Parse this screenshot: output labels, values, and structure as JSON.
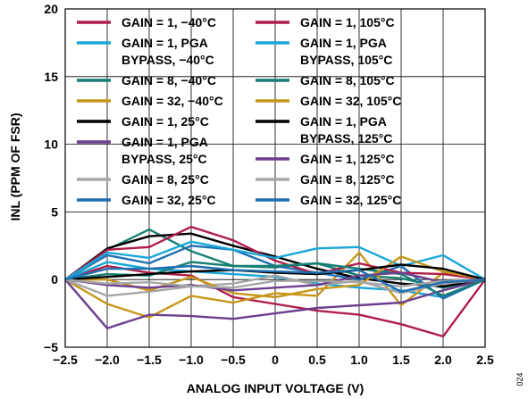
{
  "figure_id": "024",
  "chart_data": {
    "type": "line",
    "title": "",
    "xlabel": "ANALOG INPUT VOLTAGE (V)",
    "ylabel": "INL (PPM OF FSR)",
    "xlim": [
      -2.5,
      2.5
    ],
    "ylim": [
      -5,
      20
    ],
    "xticks": [
      "−2.5",
      "−2.0",
      "−1.5",
      "−1.0",
      "−0.5",
      "0",
      "0.5",
      "1.0",
      "1.5",
      "2.0",
      "2.5"
    ],
    "yticks": [
      "−5",
      "0",
      "5",
      "10",
      "15",
      "20"
    ],
    "grid": true,
    "legend_position": "top, two columns",
    "x": [
      -2.5,
      -2.0,
      -1.5,
      -1.0,
      -0.5,
      0,
      0.5,
      1.0,
      1.5,
      2.0,
      2.5
    ],
    "series": [
      {
        "legend": [
          "GAIN = 1, −40°C"
        ],
        "color": "#b01d4a",
        "values": [
          0,
          1.0,
          0.5,
          0.3,
          -1.3,
          -1.8,
          -2.3,
          -2.6,
          -3.3,
          -4.2,
          0
        ]
      },
      {
        "legend": [
          "GAIN = 1, PGA",
          "BYPASS, −40°C"
        ],
        "color": "#1aa7d8",
        "values": [
          0,
          1.3,
          0.8,
          0.6,
          0.4,
          0.2,
          -0.3,
          -0.6,
          -0.8,
          -1.3,
          0
        ]
      },
      {
        "legend": [
          "GAIN = 8, −40°C"
        ],
        "color": "#157f73",
        "values": [
          0,
          2.2,
          3.7,
          2.1,
          1.0,
          0.9,
          1.2,
          0.3,
          0.1,
          -0.6,
          0
        ]
      },
      {
        "legend": [
          "GAIN = 32, −40°C"
        ],
        "color": "#c7961b",
        "values": [
          0,
          -1.8,
          -2.8,
          -1.2,
          -1.7,
          -1.0,
          -1.2,
          2.0,
          -1.9,
          0.5,
          0
        ]
      },
      {
        "legend": [
          "GAIN = 1, 25°C"
        ],
        "color": "#000000",
        "values": [
          0,
          2.3,
          3.2,
          3.4,
          2.5,
          1.7,
          0.8,
          0.1,
          -0.3,
          -0.5,
          0
        ]
      },
      {
        "legend": [
          "GAIN = 1, PGA",
          "BYPASS, 25°C"
        ],
        "color": "#6d3f8f",
        "values": [
          0,
          -3.6,
          -2.6,
          -2.7,
          -2.9,
          -2.5,
          -2.1,
          -1.9,
          -1.7,
          -0.8,
          0
        ]
      },
      {
        "legend": [
          "GAIN = 8, 25°C"
        ],
        "color": "#a6a6a6",
        "values": [
          0,
          -1.2,
          -0.9,
          -0.5,
          -0.3,
          0.3,
          -0.4,
          -0.1,
          -1.0,
          -0.3,
          0
        ]
      },
      {
        "legend": [
          "GAIN = 32, 25°C"
        ],
        "color": "#1f6fb2",
        "values": [
          0,
          1.8,
          1.2,
          2.5,
          2.2,
          1.0,
          0.5,
          0.0,
          1.0,
          -1.4,
          0
        ]
      },
      {
        "legend": [
          "GAIN = 1, 105°C"
        ],
        "color": "#b01d4a",
        "values": [
          0,
          2.2,
          2.4,
          3.9,
          2.9,
          1.4,
          0.4,
          1.2,
          0.5,
          0.4,
          0
        ]
      },
      {
        "legend": [
          "GAIN = 1, PGA",
          "BYPASS, 105°C"
        ],
        "color": "#1aa7d8",
        "values": [
          0,
          2.0,
          1.6,
          2.8,
          2.2,
          1.6,
          2.3,
          2.4,
          1.0,
          1.8,
          0
        ]
      },
      {
        "legend": [
          "GAIN = 8, 105°C"
        ],
        "color": "#157f73",
        "values": [
          0,
          0.4,
          0.3,
          1.3,
          1.0,
          1.0,
          1.2,
          0.8,
          0.4,
          -1.2,
          0
        ]
      },
      {
        "legend": [
          "GAIN = 32, 105°C"
        ],
        "color": "#c7961b",
        "values": [
          0,
          0.0,
          -0.8,
          0.2,
          -1.0,
          -1.3,
          -0.7,
          -0.4,
          1.7,
          0.6,
          0
        ]
      },
      {
        "legend": [
          "GAIN = 1, PGA",
          "BYPASS, 125°C"
        ],
        "color": "#000000",
        "values": [
          0,
          0.2,
          0.4,
          0.6,
          0.7,
          0.5,
          0.4,
          0.7,
          1.1,
          0.8,
          0
        ]
      },
      {
        "legend": [
          "GAIN = 1, 125°C"
        ],
        "color": "#6d3f8f",
        "values": [
          0,
          -0.4,
          -0.6,
          -0.4,
          -0.8,
          -0.6,
          -0.4,
          0.3,
          0.5,
          -0.2,
          0
        ]
      },
      {
        "legend": [
          "GAIN = 8, 125°C"
        ],
        "color": "#a6a6a6",
        "values": [
          0,
          -0.3,
          -0.2,
          -0.5,
          -0.6,
          -0.1,
          -0.1,
          -0.2,
          -0.5,
          -0.1,
          0
        ]
      },
      {
        "legend": [
          "GAIN = 32, 125°C"
        ],
        "color": "#1f6fb2",
        "values": [
          0,
          0.8,
          0.8,
          1.0,
          0.7,
          0.6,
          0.5,
          0.7,
          -0.9,
          -0.2,
          0
        ]
      }
    ]
  }
}
